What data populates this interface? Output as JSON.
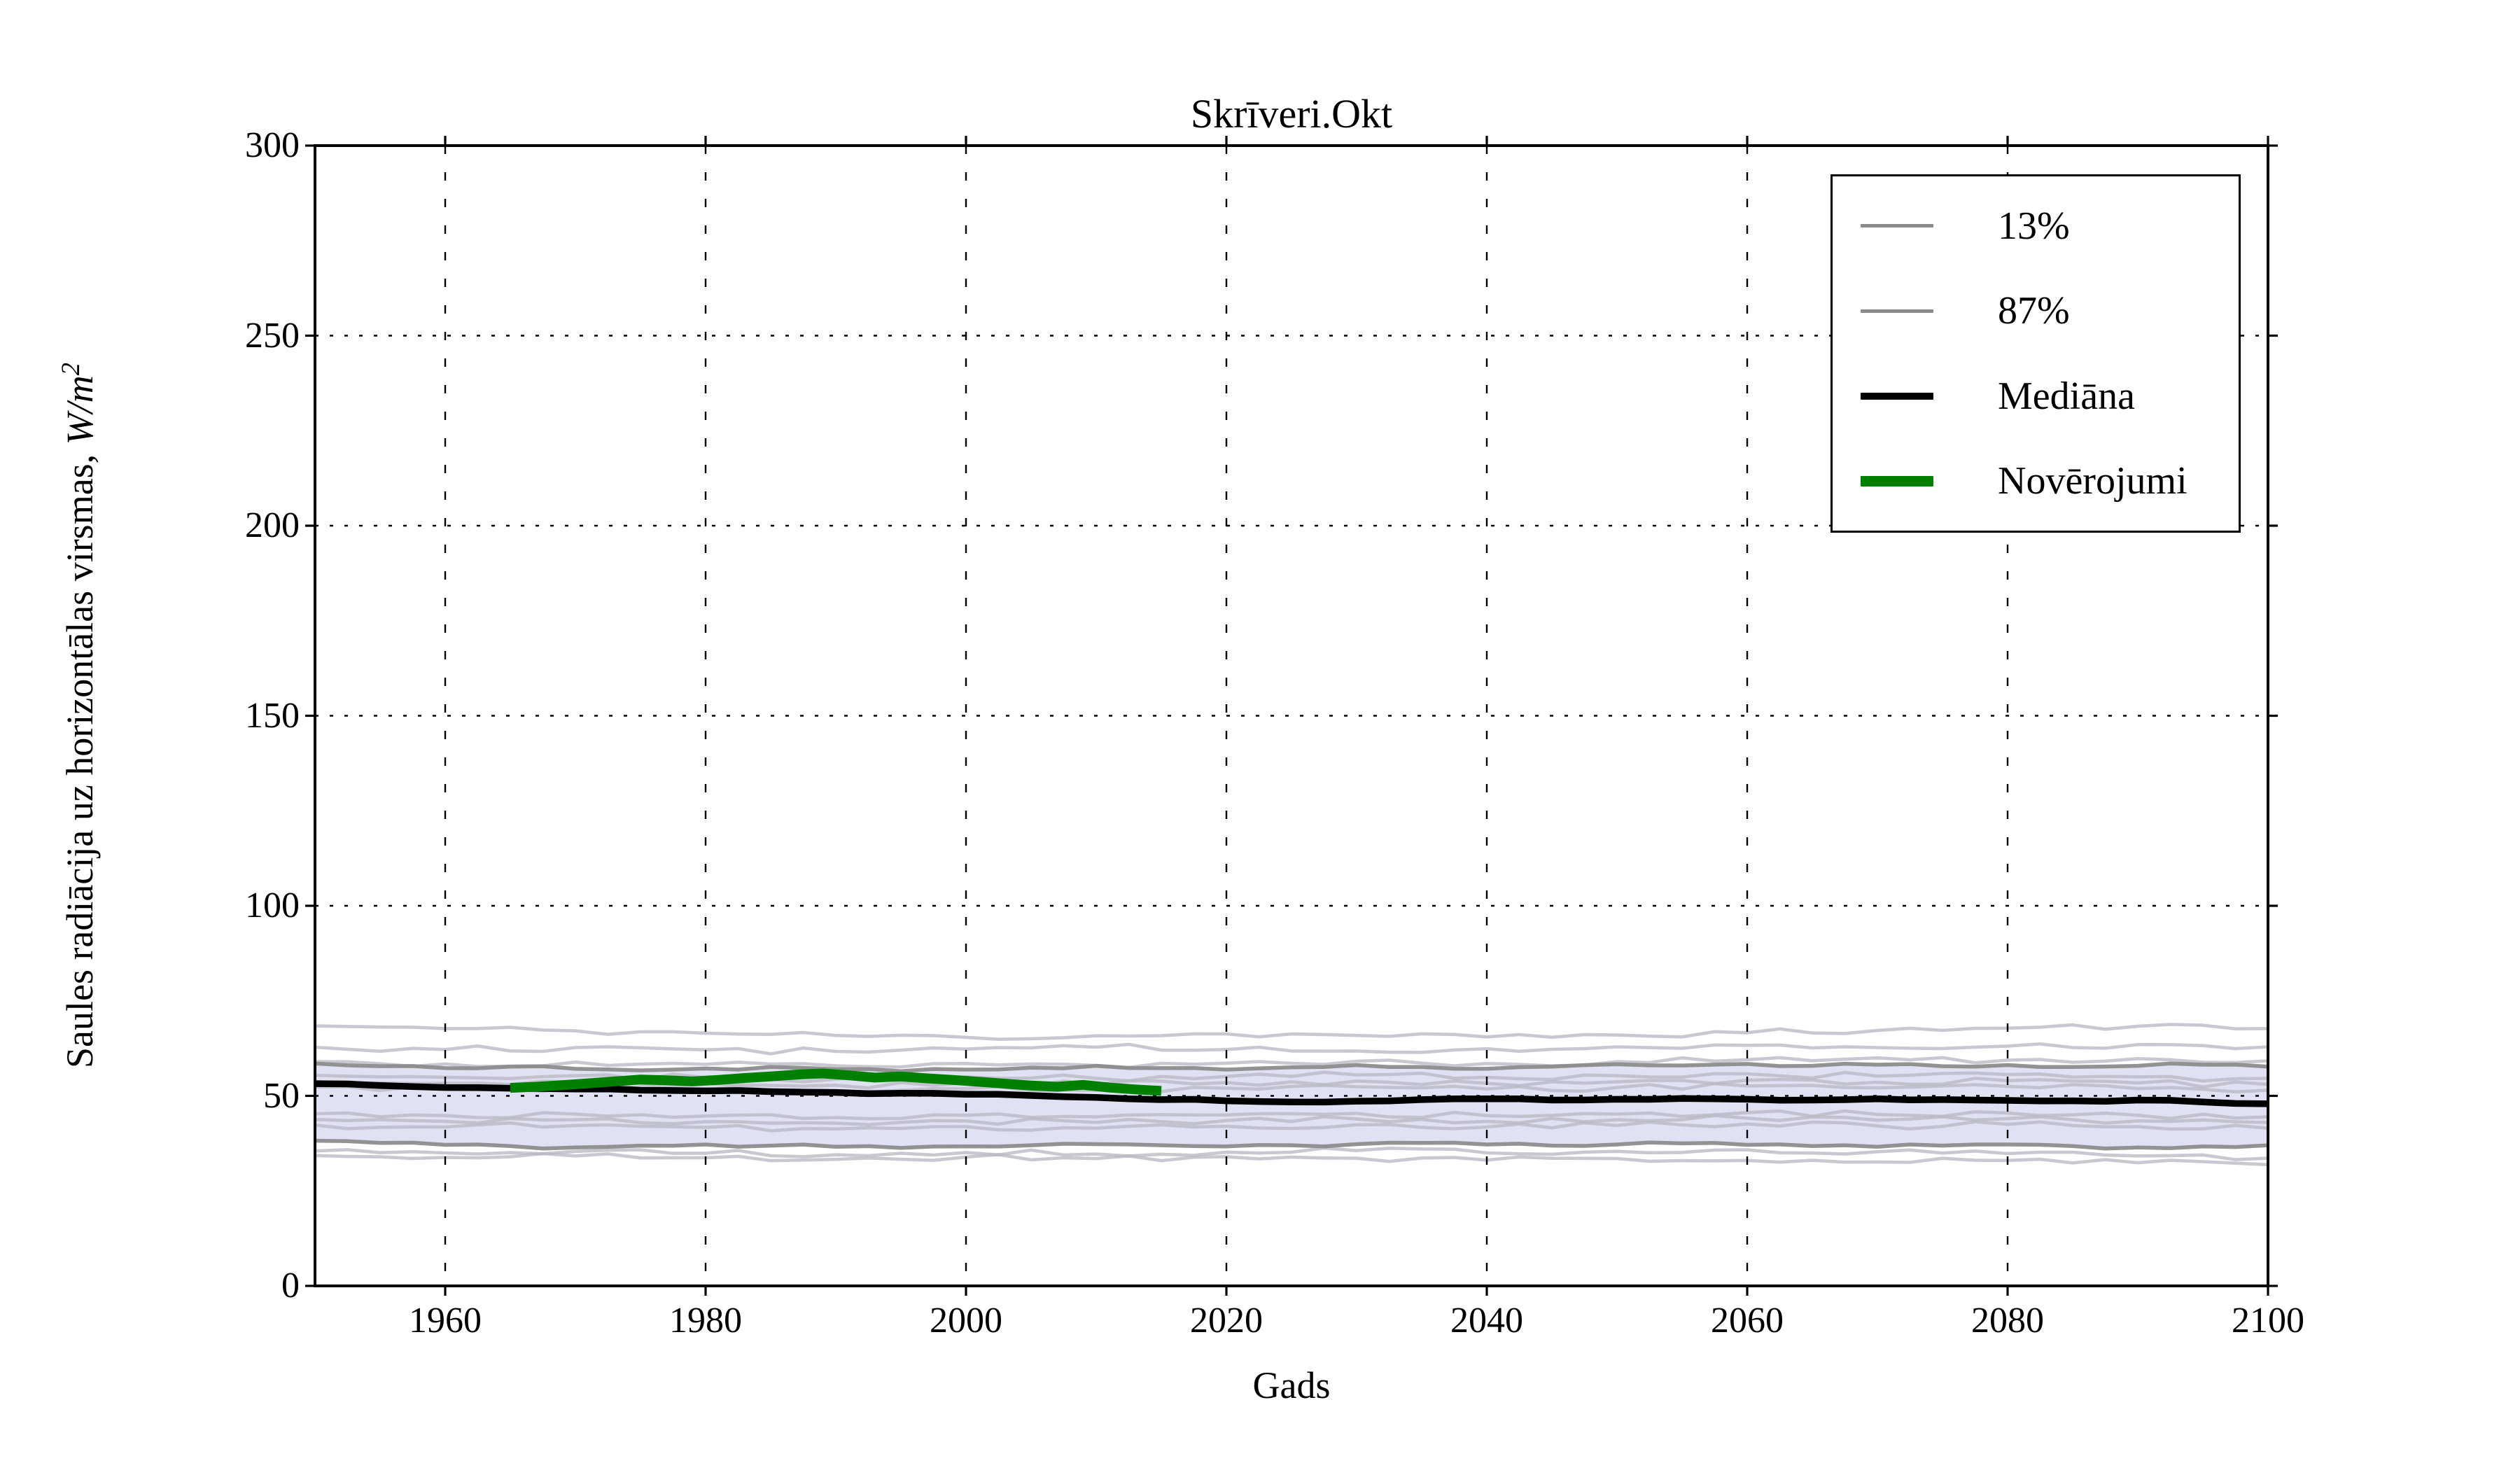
{
  "chart_data": {
    "type": "line",
    "title": "Skrīveri.Okt",
    "xlabel": "Gads",
    "ylabel": "Saules radiācija uz horizontālas virsmas, W/m²",
    "ylabel_parts": {
      "prefix": "Saules radiācija uz horizontālas virsmas, ",
      "unit_italic": "W/m",
      "exponent": "2"
    },
    "xlim": [
      1950,
      2100
    ],
    "ylim": [
      0,
      300
    ],
    "xticks": [
      1960,
      1980,
      2000,
      2020,
      2040,
      2060,
      2080,
      2100
    ],
    "yticks": [
      0,
      50,
      100,
      150,
      200,
      250,
      300
    ],
    "grid": true,
    "legend": {
      "position": "upper right",
      "items": [
        {
          "label": "13%",
          "color": "#8a8a8a",
          "line_width": 5
        },
        {
          "label": "87%",
          "color": "#8a8a8a",
          "line_width": 5
        },
        {
          "label": "Mediāna",
          "color": "#000000",
          "line_width": 10
        },
        {
          "label": "Novērojumi",
          "color": "#008000",
          "line_width": 15
        }
      ]
    },
    "colors": {
      "band_fill": "#e1e1f4",
      "ensemble_line": "#b9b9c4",
      "percentile_line": "#8a8a8a",
      "median_line": "#000000",
      "observations_line": "#008000",
      "grid_line": "#000000"
    },
    "band": {
      "label": "13%–87% percentile range",
      "years": [
        1950,
        1955,
        1960,
        1965,
        1970,
        1975,
        1980,
        1985,
        1990,
        1995,
        2000,
        2005,
        2010,
        2015,
        2020,
        2025,
        2030,
        2035,
        2040,
        2045,
        2050,
        2055,
        2060,
        2065,
        2070,
        2075,
        2080,
        2085,
        2090,
        2095,
        2100
      ],
      "p13": [
        38.2,
        37.6,
        37.1,
        36.8,
        36.4,
        36.9,
        37.2,
        36.9,
        36.6,
        36.3,
        36.7,
        37.0,
        37.3,
        37.0,
        36.7,
        37.0,
        37.3,
        37.6,
        37.2,
        36.9,
        37.2,
        37.5,
        37.1,
        36.8,
        36.6,
        36.9,
        37.2,
        36.8,
        36.4,
        36.7,
        37.0
      ],
      "p87": [
        58.5,
        57.8,
        57.3,
        57.7,
        57.1,
        56.7,
        57.2,
        57.6,
        57.0,
        56.5,
        56.9,
        57.4,
        57.9,
        57.3,
        56.9,
        57.5,
        58.1,
        57.6,
        57.1,
        57.7,
        58.3,
        58.0,
        58.4,
        57.9,
        58.2,
        57.8,
        58.1,
        57.6,
        57.9,
        58.2,
        57.7
      ]
    },
    "series": [
      {
        "name": "Mediāna",
        "color": "#000000",
        "width": 9.5,
        "years": [
          1950,
          1955,
          1960,
          1965,
          1970,
          1975,
          1980,
          1985,
          1990,
          1995,
          2000,
          2005,
          2010,
          2015,
          2020,
          2025,
          2030,
          2035,
          2040,
          2045,
          2050,
          2055,
          2060,
          2065,
          2070,
          2075,
          2080,
          2085,
          2090,
          2095,
          2100
        ],
        "values": [
          53.2,
          52.7,
          52.2,
          52.0,
          51.8,
          51.5,
          51.3,
          51.1,
          50.9,
          50.7,
          50.4,
          50.1,
          49.6,
          49.0,
          48.7,
          48.4,
          48.6,
          49.0,
          49.2,
          48.9,
          49.1,
          49.3,
          49.1,
          48.9,
          49.2,
          49.0,
          48.8,
          48.7,
          48.9,
          48.4,
          47.9
        ]
      },
      {
        "name": "Novērojumi",
        "color": "#008000",
        "width": 14,
        "years": [
          1965,
          1967,
          1969,
          1971,
          1973,
          1975,
          1977,
          1979,
          1981,
          1983,
          1985,
          1987,
          1989,
          1991,
          1993,
          1995,
          1997,
          1999,
          2001,
          2003,
          2005,
          2007,
          2009,
          2011,
          2013,
          2015
        ],
        "values": [
          52.1,
          52.4,
          52.8,
          53.3,
          53.8,
          54.3,
          54.1,
          53.8,
          54.2,
          54.7,
          55.1,
          55.6,
          55.9,
          55.4,
          54.8,
          55.1,
          54.6,
          54.2,
          53.7,
          53.2,
          52.7,
          52.4,
          52.9,
          52.2,
          51.7,
          51.3
        ]
      }
    ],
    "ensemble_members": {
      "years": [
        1950,
        1960,
        1970,
        1980,
        1990,
        2000,
        2010,
        2020,
        2030,
        2040,
        2050,
        2060,
        2070,
        2080,
        2090,
        2100
      ],
      "lines": [
        {
          "seed": 11,
          "values": [
            68.4,
            67.7,
            67.1,
            66.5,
            65.9,
            65.4,
            65.8,
            66.3,
            65.9,
            65.5,
            66.0,
            66.6,
            67.2,
            67.8,
            68.3,
            67.7
          ]
        },
        {
          "seed": 12,
          "values": [
            62.8,
            62.2,
            62.7,
            62.1,
            61.7,
            62.3,
            62.8,
            62.2,
            61.8,
            62.4,
            62.9,
            63.3,
            62.7,
            63.1,
            63.5,
            62.9
          ]
        },
        {
          "seed": 13,
          "values": [
            59.0,
            58.4,
            58.9,
            58.3,
            57.9,
            58.5,
            58.0,
            58.6,
            59.1,
            58.5,
            59.0,
            59.5,
            60.0,
            59.4,
            59.8,
            59.2
          ]
        },
        {
          "seed": 14,
          "values": [
            55.4,
            54.9,
            55.3,
            54.8,
            54.4,
            55.0,
            54.6,
            55.1,
            55.5,
            54.9,
            55.3,
            55.8,
            55.2,
            55.6,
            55.0,
            54.6
          ]
        },
        {
          "seed": 15,
          "values": [
            53.8,
            53.3,
            53.7,
            53.2,
            52.8,
            53.4,
            53.0,
            53.5,
            53.9,
            53.3,
            53.7,
            54.1,
            53.6,
            54.0,
            53.4,
            53.0
          ]
        },
        {
          "seed": 16,
          "values": [
            52.3,
            51.8,
            52.2,
            51.7,
            51.3,
            51.9,
            51.5,
            52.0,
            52.4,
            51.8,
            52.2,
            52.6,
            52.1,
            52.5,
            51.9,
            51.5
          ]
        },
        {
          "seed": 17,
          "values": [
            45.3,
            44.8,
            45.2,
            44.7,
            44.3,
            44.9,
            44.5,
            45.0,
            45.4,
            44.8,
            45.2,
            45.6,
            45.1,
            45.5,
            44.9,
            44.5
          ]
        },
        {
          "seed": 18,
          "values": [
            43.8,
            43.3,
            43.7,
            43.2,
            42.8,
            43.4,
            43.0,
            43.5,
            43.9,
            43.3,
            43.7,
            44.1,
            43.6,
            44.0,
            43.4,
            43.0
          ]
        },
        {
          "seed": 19,
          "values": [
            42.3,
            41.8,
            42.2,
            41.7,
            41.3,
            41.9,
            41.5,
            42.0,
            42.4,
            41.8,
            42.2,
            42.6,
            42.1,
            42.5,
            41.9,
            41.5
          ]
        },
        {
          "seed": 20,
          "values": [
            35.5,
            35.0,
            35.4,
            34.9,
            34.5,
            35.1,
            34.7,
            35.2,
            35.6,
            35.0,
            35.4,
            35.8,
            35.3,
            34.8,
            34.2,
            33.6
          ]
        },
        {
          "seed": 21,
          "values": [
            34.3,
            33.8,
            34.2,
            33.7,
            33.3,
            33.9,
            33.5,
            34.0,
            33.6,
            33.1,
            33.5,
            33.0,
            32.6,
            33.0,
            32.4,
            31.9
          ]
        }
      ]
    }
  }
}
